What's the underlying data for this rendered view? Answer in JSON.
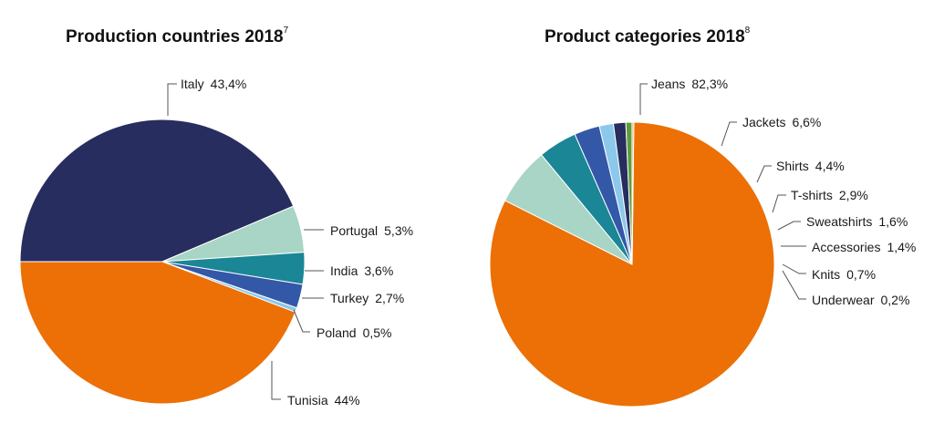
{
  "chart_data": [
    {
      "type": "pie",
      "title": "Production countries 2018",
      "footnote": "7",
      "slices": [
        {
          "label": "Italy",
          "value_text": "43,4%",
          "value": 43.4,
          "color": "#272d5e"
        },
        {
          "label": "Portugal",
          "value_text": "5,3%",
          "value": 5.3,
          "color": "#a8d5c5"
        },
        {
          "label": "India",
          "value_text": "3,6%",
          "value": 3.6,
          "color": "#1a8696"
        },
        {
          "label": "Turkey",
          "value_text": "2,7%",
          "value": 2.7,
          "color": "#3458a8"
        },
        {
          "label": "Poland",
          "value_text": "0,5%",
          "value": 0.5,
          "color": "#8cc8ec"
        },
        {
          "label": "Tunisia",
          "value_text": "44%",
          "value": 44.0,
          "color": "#ec7005"
        }
      ]
    },
    {
      "type": "pie",
      "title": "Product categories 2018",
      "footnote": "8",
      "slices": [
        {
          "label": "Jeans",
          "value_text": "82,3%",
          "value": 82.3,
          "color": "#ec7005"
        },
        {
          "label": "Jackets",
          "value_text": "6,6%",
          "value": 6.6,
          "color": "#a8d5c5"
        },
        {
          "label": "Shirts",
          "value_text": "4,4%",
          "value": 4.4,
          "color": "#1a8696"
        },
        {
          "label": "T-shirts",
          "value_text": "2,9%",
          "value": 2.9,
          "color": "#3458a8"
        },
        {
          "label": "Sweatshirts",
          "value_text": "1,6%",
          "value": 1.6,
          "color": "#8cc8ec"
        },
        {
          "label": "Accessories",
          "value_text": "1,4%",
          "value": 1.4,
          "color": "#272d5e"
        },
        {
          "label": "Knits",
          "value_text": "0,7%",
          "value": 0.7,
          "color": "#5e9c3c"
        },
        {
          "label": "Underwear",
          "value_text": "0,2%",
          "value": 0.2,
          "color": "#f2a65e"
        }
      ]
    }
  ]
}
